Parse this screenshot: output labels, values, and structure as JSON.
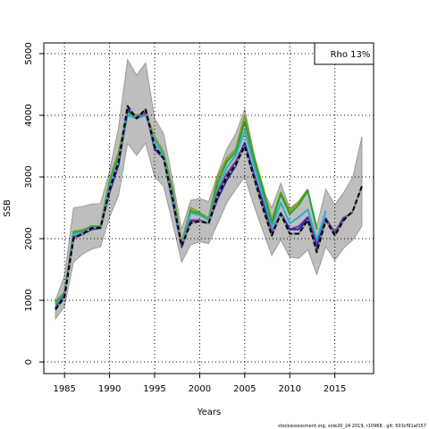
{
  "chart_data": {
    "type": "line",
    "x_label": "Years",
    "y_label": "SSB",
    "legend_text": "Rho 13%",
    "footer": "stockassessment.org, sole20_24 2019, r10968 , git: 503cf91af157",
    "x": [
      1984,
      1985,
      1986,
      1987,
      1988,
      1989,
      1990,
      1991,
      1992,
      1993,
      1994,
      1995,
      1996,
      1997,
      1998,
      1999,
      2000,
      2001,
      2002,
      2003,
      2004,
      2005,
      2006,
      2007,
      2008,
      2009,
      2010,
      2011,
      2012,
      2013,
      2014,
      2015,
      2016,
      2017,
      2018
    ],
    "band": {
      "color": "#bebebe",
      "upper": [
        1000,
        1400,
        2500,
        2520,
        2560,
        2570,
        3100,
        3800,
        4900,
        4650,
        4850,
        3950,
        3700,
        2950,
        2150,
        2620,
        2650,
        2600,
        3050,
        3450,
        3700,
        4100,
        3400,
        2800,
        2500,
        2900,
        2500,
        2600,
        2800,
        2200,
        2800,
        2550,
        2750,
        3000,
        3650
      ],
      "lower": [
        700,
        900,
        1620,
        1750,
        1830,
        1870,
        2350,
        2700,
        3550,
        3350,
        3550,
        3000,
        2850,
        2250,
        1620,
        1900,
        1950,
        1920,
        2250,
        2580,
        2800,
        3000,
        2550,
        2130,
        1730,
        1980,
        1700,
        1680,
        1820,
        1420,
        1870,
        1650,
        1850,
        1980,
        2200
      ]
    },
    "series": [
      {
        "color": "#8c9b1e",
        "values": [
          980,
          1130,
          2120,
          2140,
          2200,
          2200,
          2950,
          3400,
          4080,
          4000,
          4050,
          3650,
          3400,
          2800,
          1920,
          2500,
          2420,
          2330,
          3000,
          3300,
          3450,
          4000,
          3350,
          2850,
          2300,
          2750,
          2450,
          2600,
          2800,
          null,
          null,
          null,
          null,
          null,
          null
        ]
      },
      {
        "color": "#2ca02c",
        "values": [
          950,
          1120,
          2100,
          2120,
          2200,
          2200,
          2900,
          3350,
          4050,
          3980,
          4030,
          3600,
          3350,
          2750,
          1900,
          2450,
          2400,
          2300,
          2900,
          3250,
          3400,
          3900,
          3300,
          2800,
          2250,
          2720,
          2400,
          2550,
          2780,
          2150,
          null,
          null,
          null,
          null,
          null
        ]
      },
      {
        "color": "#22b5c8",
        "values": [
          920,
          1100,
          2080,
          2100,
          2180,
          2190,
          2850,
          3300,
          4000,
          3950,
          4000,
          3600,
          3350,
          2700,
          1880,
          2420,
          2380,
          2300,
          2800,
          3150,
          3350,
          3750,
          3200,
          2700,
          2180,
          2580,
          2250,
          2350,
          2470,
          1980,
          2450,
          null,
          null,
          null,
          null
        ]
      },
      {
        "color": "#7b3294",
        "values": [
          880,
          1080,
          2030,
          2080,
          2170,
          2180,
          2800,
          3250,
          4100,
          3950,
          4050,
          3500,
          3300,
          2650,
          1870,
          2300,
          2300,
          2250,
          2750,
          3050,
          3250,
          3550,
          3050,
          2600,
          2100,
          2420,
          2150,
          2200,
          2350,
          1900,
          2330,
          2100,
          2350,
          null,
          null
        ]
      },
      {
        "color": "#1f1fb4",
        "values": [
          870,
          1070,
          2020,
          2070,
          2150,
          2170,
          2750,
          3200,
          4100,
          3950,
          4100,
          3450,
          3300,
          2600,
          1860,
          2270,
          2280,
          2250,
          2650,
          2950,
          3180,
          3550,
          3050,
          2550,
          2050,
          2400,
          2150,
          2150,
          2330,
          1850,
          2320,
          2050,
          2330,
          2430,
          null
        ]
      },
      {
        "color": "#000000",
        "dashed": true,
        "values": [
          850,
          1050,
          2000,
          2080,
          2170,
          2180,
          2800,
          3250,
          4150,
          3950,
          4100,
          3500,
          3300,
          2650,
          1880,
          2250,
          2280,
          2250,
          2700,
          3000,
          3200,
          3500,
          3000,
          2500,
          2050,
          2400,
          2080,
          2080,
          2300,
          1780,
          2300,
          2050,
          2300,
          2450,
          2850
        ]
      }
    ],
    "xlim": [
      1982.7,
      2019.3
    ],
    "ylim": [
      -188,
      5174
    ],
    "xticks": [
      1985,
      1990,
      1995,
      2000,
      2005,
      2010,
      2015
    ],
    "yticks": [
      0,
      1000,
      2000,
      3000,
      4000,
      5000
    ],
    "grid": true
  }
}
